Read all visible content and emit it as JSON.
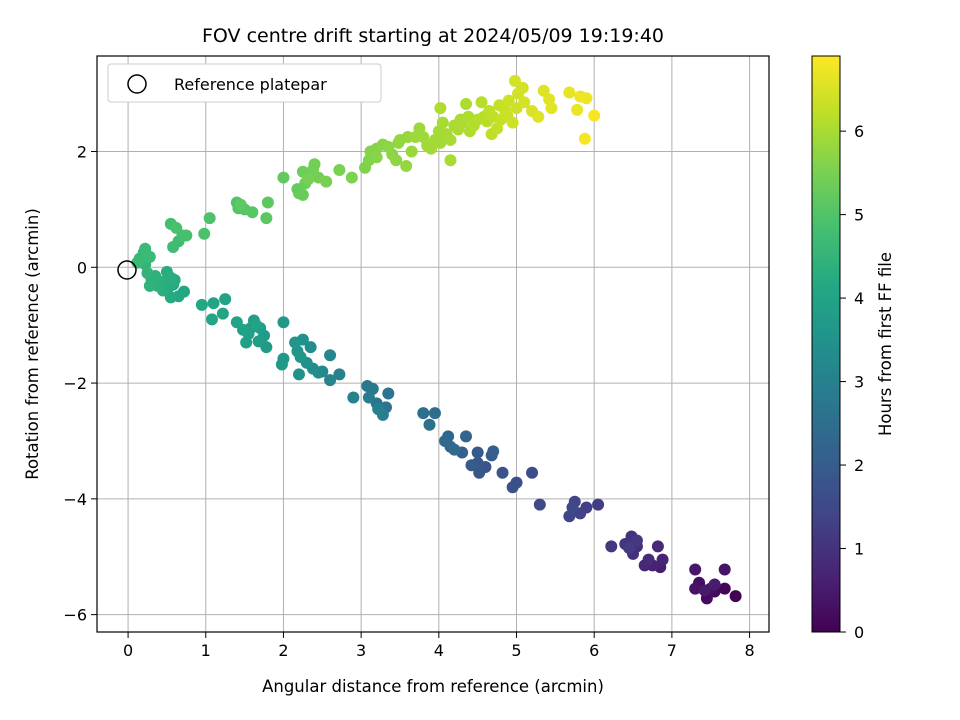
{
  "chart_data": {
    "type": "scatter",
    "title": "FOV centre drift starting at 2024/05/09 19:19:40",
    "xlabel": "Angular distance from reference (arcmin)",
    "ylabel": "Rotation from reference (arcmin)",
    "xlim": [
      -0.4,
      8.25
    ],
    "ylim": [
      -6.3,
      3.65
    ],
    "xticks": [
      0,
      1,
      2,
      3,
      4,
      5,
      6,
      7,
      8
    ],
    "xtick_labels": [
      "0",
      "1",
      "2",
      "3",
      "4",
      "5",
      "6",
      "7",
      "8"
    ],
    "yticks": [
      -6,
      -4,
      -2,
      0,
      2
    ],
    "ytick_labels": [
      "−6",
      "−4",
      "−2",
      "0",
      "2"
    ],
    "grid": true,
    "legend": {
      "placement": "upper-left",
      "entries": [
        "Reference platepar"
      ]
    },
    "reference_point": {
      "x": 0,
      "y": 0
    },
    "colorbar": {
      "label": "Hours from first FF file",
      "colormap": "viridis",
      "range": [
        0,
        6.9
      ],
      "ticks": [
        0,
        1,
        2,
        3,
        4,
        5,
        6
      ],
      "tick_labels": [
        "0",
        "1",
        "2",
        "3",
        "4",
        "5",
        "6"
      ]
    },
    "points": [
      [
        7.82,
        -5.68,
        0.05
      ],
      [
        7.68,
        -5.55,
        0.1
      ],
      [
        7.55,
        -5.6,
        0.15
      ],
      [
        7.45,
        -5.72,
        0.2
      ],
      [
        7.35,
        -5.45,
        0.25
      ],
      [
        7.5,
        -5.55,
        0.3
      ],
      [
        7.3,
        -5.55,
        0.35
      ],
      [
        7.68,
        -5.22,
        0.4
      ],
      [
        7.3,
        -5.22,
        0.45
      ],
      [
        7.42,
        -5.58,
        0.5
      ],
      [
        7.55,
        -5.48,
        0.55
      ],
      [
        6.85,
        -5.18,
        0.6
      ],
      [
        6.75,
        -5.15,
        0.65
      ],
      [
        6.88,
        -5.05,
        0.7
      ],
      [
        6.65,
        -5.15,
        0.75
      ],
      [
        6.82,
        -4.82,
        0.8
      ],
      [
        6.7,
        -5.05,
        0.85
      ],
      [
        6.55,
        -4.82,
        0.9
      ],
      [
        6.5,
        -4.95,
        0.95
      ],
      [
        6.48,
        -4.65,
        1.0
      ],
      [
        6.4,
        -4.78,
        1.05
      ],
      [
        6.22,
        -4.82,
        1.1
      ],
      [
        6.55,
        -4.72,
        1.15
      ],
      [
        6.45,
        -4.85,
        1.2
      ],
      [
        6.05,
        -4.1,
        1.25
      ],
      [
        5.9,
        -4.15,
        1.3
      ],
      [
        5.82,
        -4.25,
        1.35
      ],
      [
        5.75,
        -4.05,
        1.4
      ],
      [
        5.68,
        -4.3,
        1.45
      ],
      [
        5.72,
        -4.15,
        1.5
      ],
      [
        5.3,
        -4.1,
        1.55
      ],
      [
        5.2,
        -3.55,
        1.6
      ],
      [
        5.0,
        -3.72,
        1.65
      ],
      [
        4.95,
        -3.8,
        1.7
      ],
      [
        4.82,
        -3.55,
        1.75
      ],
      [
        4.6,
        -3.45,
        1.8
      ],
      [
        4.52,
        -3.55,
        1.85
      ],
      [
        4.5,
        -3.38,
        1.9
      ],
      [
        4.5,
        -3.2,
        1.95
      ],
      [
        4.42,
        -3.42,
        2.0
      ],
      [
        4.68,
        -3.25,
        2.05
      ],
      [
        4.7,
        -3.18,
        2.1
      ],
      [
        4.3,
        -3.2,
        2.15
      ],
      [
        4.35,
        -2.92,
        2.2
      ],
      [
        4.15,
        -3.1,
        2.25
      ],
      [
        4.12,
        -2.92,
        2.3
      ],
      [
        4.08,
        -3.0,
        2.35
      ],
      [
        4.2,
        -3.15,
        2.4
      ],
      [
        3.95,
        -2.52,
        2.45
      ],
      [
        3.8,
        -2.52,
        2.5
      ],
      [
        3.88,
        -2.72,
        2.55
      ],
      [
        3.35,
        -2.18,
        2.6
      ],
      [
        3.32,
        -2.42,
        2.65
      ],
      [
        3.2,
        -2.35,
        2.7
      ],
      [
        3.15,
        -2.1,
        2.75
      ],
      [
        3.08,
        -2.05,
        2.8
      ],
      [
        3.1,
        -2.25,
        2.85
      ],
      [
        3.28,
        -2.55,
        2.9
      ],
      [
        3.22,
        -2.45,
        2.95
      ],
      [
        2.9,
        -2.25,
        3.0
      ],
      [
        2.72,
        -1.85,
        3.05
      ],
      [
        2.6,
        -1.95,
        3.1
      ],
      [
        2.6,
        -1.52,
        3.15
      ],
      [
        2.5,
        -1.8,
        3.2
      ],
      [
        2.45,
        -1.82,
        3.25
      ],
      [
        2.38,
        -1.75,
        3.3
      ],
      [
        2.35,
        -1.38,
        3.35
      ],
      [
        2.3,
        -1.65,
        3.4
      ],
      [
        2.25,
        -1.25,
        3.45
      ],
      [
        2.2,
        -1.85,
        3.5
      ],
      [
        2.18,
        -1.45,
        3.55
      ],
      [
        2.15,
        -1.3,
        3.6
      ],
      [
        2.22,
        -1.55,
        3.62
      ],
      [
        2.0,
        -1.58,
        3.65
      ],
      [
        1.98,
        -1.68,
        3.68
      ],
      [
        2.0,
        -0.95,
        3.7
      ],
      [
        1.78,
        -1.38,
        3.72
      ],
      [
        1.75,
        -1.18,
        3.75
      ],
      [
        1.7,
        -1.05,
        3.78
      ],
      [
        1.68,
        -1.28,
        3.8
      ],
      [
        1.62,
        -0.92,
        3.82
      ],
      [
        1.58,
        -1.05,
        3.85
      ],
      [
        1.55,
        -1.15,
        3.88
      ],
      [
        1.52,
        -1.3,
        3.9
      ],
      [
        1.48,
        -1.08,
        3.92
      ],
      [
        1.4,
        -0.95,
        3.95
      ],
      [
        1.65,
        -1.0,
        3.97
      ],
      [
        1.25,
        -0.55,
        4.0
      ],
      [
        1.22,
        -0.8,
        4.02
      ],
      [
        1.1,
        -0.62,
        4.05
      ],
      [
        1.08,
        -0.9,
        4.08
      ],
      [
        0.95,
        -0.65,
        4.1
      ],
      [
        0.72,
        -0.42,
        4.12
      ],
      [
        0.65,
        -0.5,
        4.15
      ],
      [
        0.58,
        -0.3,
        4.18
      ],
      [
        0.55,
        -0.52,
        4.2
      ],
      [
        0.6,
        -0.22,
        4.22
      ],
      [
        0.52,
        -0.35,
        4.25
      ],
      [
        0.5,
        -0.08,
        4.28
      ],
      [
        0.55,
        -0.18,
        4.3
      ],
      [
        0.45,
        -0.4,
        4.32
      ],
      [
        0.42,
        -0.25,
        4.35
      ],
      [
        0.38,
        -0.32,
        4.38
      ],
      [
        0.35,
        -0.15,
        4.4
      ],
      [
        0.3,
        -0.2,
        4.42
      ],
      [
        0.28,
        -0.32,
        4.45
      ],
      [
        0.25,
        -0.1,
        4.48
      ],
      [
        0.22,
        0.05,
        4.5
      ],
      [
        0.18,
        0.12,
        4.52
      ],
      [
        0.2,
        0.25,
        4.55
      ],
      [
        0.25,
        0.2,
        4.57
      ],
      [
        0.15,
        0.15,
        4.6
      ],
      [
        0.12,
        0.08,
        4.62
      ],
      [
        0.28,
        0.18,
        4.64
      ],
      [
        0.22,
        0.32,
        4.66
      ],
      [
        0.58,
        0.35,
        4.7
      ],
      [
        0.65,
        0.45,
        4.75
      ],
      [
        0.55,
        0.75,
        4.8
      ],
      [
        0.7,
        0.55,
        4.82
      ],
      [
        0.75,
        0.55,
        4.85
      ],
      [
        0.62,
        0.68,
        4.88
      ],
      [
        0.98,
        0.58,
        4.92
      ],
      [
        1.05,
        0.85,
        4.95
      ],
      [
        1.4,
        1.12,
        5.0
      ],
      [
        1.42,
        1.02,
        5.03
      ],
      [
        1.5,
        1.0,
        5.06
      ],
      [
        1.6,
        0.95,
        5.09
      ],
      [
        1.78,
        0.85,
        5.12
      ],
      [
        1.8,
        1.12,
        5.15
      ],
      [
        1.45,
        1.08,
        5.18
      ],
      [
        2.0,
        1.55,
        5.22
      ],
      [
        2.18,
        1.35,
        5.25
      ],
      [
        2.2,
        1.28,
        5.28
      ],
      [
        2.25,
        1.25,
        5.3
      ],
      [
        2.28,
        1.45,
        5.32
      ],
      [
        2.25,
        1.65,
        5.35
      ],
      [
        2.35,
        1.58,
        5.38
      ],
      [
        2.38,
        1.68,
        5.4
      ],
      [
        2.4,
        1.78,
        5.42
      ],
      [
        2.45,
        1.55,
        5.45
      ],
      [
        2.55,
        1.48,
        5.48
      ],
      [
        2.32,
        1.52,
        5.5
      ],
      [
        2.72,
        1.68,
        5.52
      ],
      [
        2.88,
        1.55,
        5.55
      ],
      [
        3.05,
        1.72,
        5.58
      ],
      [
        3.1,
        1.85,
        5.6
      ],
      [
        3.12,
        2.0,
        5.62
      ],
      [
        3.2,
        2.05,
        5.64
      ],
      [
        3.2,
        1.9,
        5.66
      ],
      [
        3.28,
        2.12,
        5.68
      ],
      [
        3.35,
        2.08,
        5.7
      ],
      [
        3.4,
        1.95,
        5.72
      ],
      [
        3.45,
        1.85,
        5.74
      ],
      [
        3.48,
        2.15,
        5.76
      ],
      [
        3.5,
        2.2,
        5.78
      ],
      [
        3.58,
        1.75,
        5.8
      ],
      [
        3.6,
        2.25,
        5.82
      ],
      [
        3.65,
        2.0,
        5.84
      ],
      [
        3.7,
        2.25,
        5.86
      ],
      [
        3.75,
        2.4,
        5.88
      ],
      [
        3.8,
        2.25,
        5.9
      ],
      [
        3.85,
        2.1,
        5.92
      ],
      [
        3.9,
        2.05,
        5.93
      ],
      [
        3.95,
        2.2,
        5.94
      ],
      [
        4.0,
        2.35,
        5.95
      ],
      [
        4.02,
        2.15,
        5.96
      ],
      [
        4.05,
        2.5,
        5.97
      ],
      [
        4.1,
        2.3,
        5.98
      ],
      [
        4.15,
        2.2,
        5.99
      ],
      [
        4.15,
        1.85,
        6.0
      ],
      [
        4.2,
        2.45,
        6.01
      ],
      [
        4.25,
        2.38,
        6.02
      ],
      [
        4.28,
        2.55,
        6.03
      ],
      [
        4.3,
        2.5,
        6.04
      ],
      [
        4.35,
        2.82,
        6.05
      ],
      [
        4.38,
        2.6,
        6.06
      ],
      [
        4.4,
        2.35,
        6.07
      ],
      [
        4.02,
        2.75,
        6.08
      ],
      [
        4.45,
        2.45,
        6.1
      ],
      [
        4.5,
        2.55,
        6.12
      ],
      [
        4.55,
        2.85,
        6.14
      ],
      [
        4.58,
        2.6,
        6.16
      ],
      [
        4.62,
        2.52,
        6.18
      ],
      [
        4.65,
        2.7,
        6.2
      ],
      [
        4.68,
        2.3,
        6.22
      ],
      [
        4.7,
        2.6,
        6.24
      ],
      [
        4.75,
        2.4,
        6.26
      ],
      [
        4.78,
        2.8,
        6.28
      ],
      [
        4.8,
        2.55,
        6.3
      ],
      [
        4.85,
        2.72,
        6.32
      ],
      [
        4.88,
        2.62,
        6.34
      ],
      [
        4.9,
        2.88,
        6.36
      ],
      [
        4.95,
        2.5,
        6.38
      ],
      [
        5.0,
        2.75,
        6.4
      ],
      [
        5.02,
        3.0,
        6.42
      ],
      [
        4.98,
        3.22,
        6.44
      ],
      [
        5.08,
        3.1,
        6.46
      ],
      [
        5.1,
        2.85,
        6.48
      ],
      [
        5.2,
        2.7,
        6.5
      ],
      [
        5.28,
        2.6,
        6.55
      ],
      [
        5.35,
        3.05,
        6.58
      ],
      [
        5.42,
        2.9,
        6.6
      ],
      [
        5.45,
        2.75,
        6.62
      ],
      [
        5.68,
        3.02,
        6.65
      ],
      [
        5.78,
        2.72,
        6.7
      ],
      [
        5.82,
        2.95,
        6.72
      ],
      [
        5.9,
        2.92,
        6.75
      ],
      [
        5.88,
        2.22,
        6.8
      ],
      [
        6.0,
        2.62,
        6.85
      ]
    ]
  }
}
